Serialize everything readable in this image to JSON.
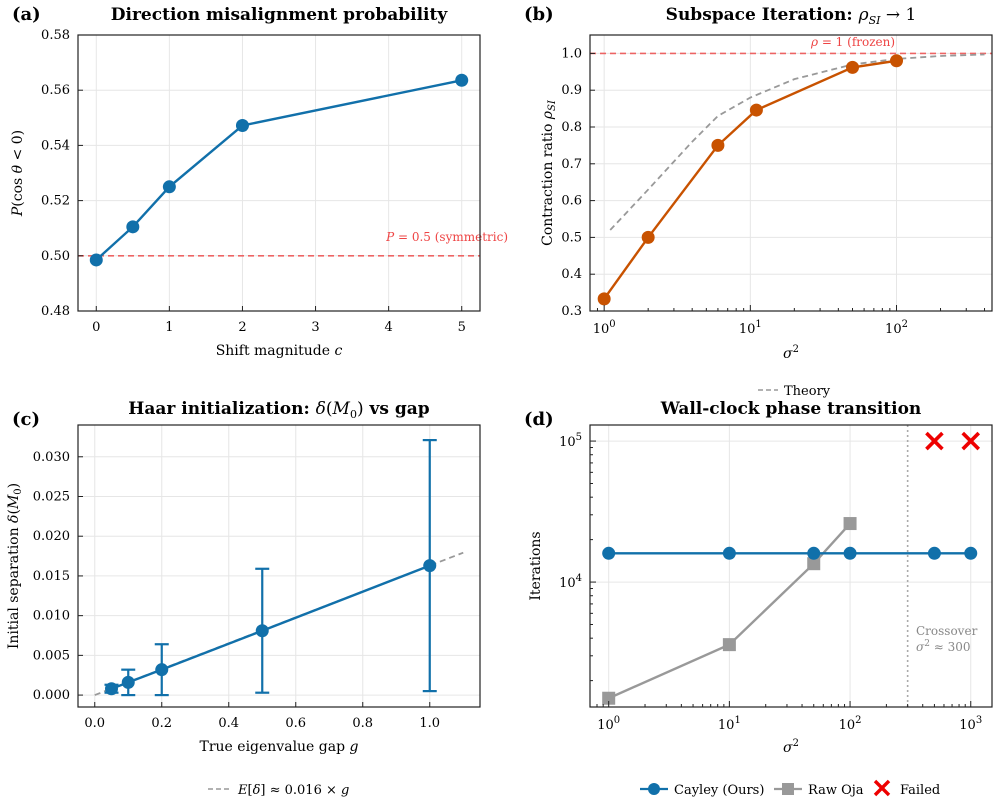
{
  "colors": {
    "blue": "#1170aa",
    "orange": "#c85200",
    "gray": "#999999",
    "red": "#ee4444",
    "theory": "#999999",
    "fail": "#ee0000"
  },
  "chart_data": [
    {
      "id": "a",
      "type": "line",
      "panel_label": "(a)",
      "title": "Direction misalignment probability",
      "xlabel": "Shift magnitude c",
      "ylabel": "P(cos θ < 0)",
      "xlim": [
        -0.25,
        5.25
      ],
      "ylim": [
        0.48,
        0.58
      ],
      "xticks": [
        0,
        1,
        2,
        3,
        4,
        5
      ],
      "xtick_labels": [
        "0",
        "1",
        "2",
        "3",
        "4",
        "5"
      ],
      "yticks": [
        0.48,
        0.5,
        0.52,
        0.54,
        0.56,
        0.58
      ],
      "ytick_labels": [
        "0.48",
        "0.50",
        "0.52",
        "0.54",
        "0.56",
        "0.58"
      ],
      "series": [
        {
          "name": "P(cos θ < 0)",
          "x": [
            0,
            0.5,
            1,
            2,
            5
          ],
          "y": [
            0.4985,
            0.5105,
            0.525,
            0.5472,
            0.5636
          ]
        }
      ],
      "reference_line": {
        "y": 0.5,
        "label": "P = 0.5 (symmetric)"
      }
    },
    {
      "id": "b",
      "type": "line",
      "panel_label": "(b)",
      "title": "Subspace Iteration: ρSI → 1",
      "xlabel": "σ²",
      "ylabel": "Contraction ratio ρSI",
      "xscale": "log",
      "xlim": [
        0.8,
        450
      ],
      "ylim": [
        0.3,
        1.05
      ],
      "xtick_exponents": [
        "0",
        "1",
        "2"
      ],
      "yticks": [
        0.3,
        0.4,
        0.5,
        0.6,
        0.7,
        0.8,
        0.9,
        1.0
      ],
      "ytick_labels": [
        "0.3",
        "0.4",
        "0.5",
        "0.6",
        "0.7",
        "0.8",
        "0.9",
        "1.0"
      ],
      "series": [
        {
          "name": "ρSI",
          "x": [
            1,
            2,
            6,
            11,
            50,
            100
          ],
          "y": [
            0.333,
            0.5,
            0.75,
            0.846,
            0.962,
            0.98
          ]
        },
        {
          "name": "Theory",
          "x": [
            1.1,
            2,
            4,
            6,
            10,
            20,
            50,
            100,
            200,
            400
          ],
          "y": [
            0.52,
            0.63,
            0.76,
            0.83,
            0.88,
            0.93,
            0.97,
            0.985,
            0.993,
            0.997
          ]
        }
      ],
      "reference_line": {
        "y": 1.0,
        "label": "ρ = 1 (frozen)"
      },
      "legend": [
        "Theory"
      ]
    },
    {
      "id": "c",
      "type": "line",
      "panel_label": "(c)",
      "title": "Haar initialization: δ(M0) vs gap",
      "xlabel": "True eigenvalue gap g",
      "ylabel": "Initial separation δ(M0)",
      "xlim": [
        -0.05,
        1.15
      ],
      "ylim": [
        -0.0015,
        0.034
      ],
      "xticks": [
        0,
        0.2,
        0.4,
        0.6,
        0.8,
        1.0
      ],
      "xtick_labels": [
        "0.0",
        "0.2",
        "0.4",
        "0.6",
        "0.8",
        "1.0"
      ],
      "yticks": [
        0,
        0.005,
        0.01,
        0.015,
        0.02,
        0.025,
        0.03
      ],
      "ytick_labels": [
        "0.000",
        "0.005",
        "0.010",
        "0.015",
        "0.020",
        "0.025",
        "0.030"
      ],
      "series": [
        {
          "name": "δ(M0)",
          "x": [
            0.05,
            0.1,
            0.2,
            0.5,
            1.0
          ],
          "y": [
            0.0008,
            0.0016,
            0.0032,
            0.0081,
            0.0163
          ],
          "err": [
            0.0005,
            0.0016,
            0.0032,
            0.0078,
            0.0158
          ]
        }
      ],
      "fit_line": {
        "label": "E[δ] ≈ 0.016 × g",
        "slope": 0.0163,
        "x": [
          0,
          1.1
        ]
      },
      "legend": [
        "E[δ] ≈ 0.016 × g"
      ]
    },
    {
      "id": "d",
      "type": "line",
      "panel_label": "(d)",
      "title": "Wall-clock phase transition",
      "xlabel": "σ²",
      "ylabel": "Iterations",
      "xscale": "log",
      "yscale": "log",
      "xlim": [
        0.7,
        1500
      ],
      "ylim": [
        1300,
        130000
      ],
      "xtick_exponents": [
        "0",
        "1",
        "2",
        "3"
      ],
      "ytick_exponents": [
        "4",
        "5"
      ],
      "series": [
        {
          "name": "Cayley (Ours)",
          "x": [
            1,
            10,
            50,
            100,
            500,
            1000
          ],
          "y": [
            16000,
            16000,
            16000,
            16000,
            16000,
            16000
          ]
        },
        {
          "name": "Raw Oja",
          "x": [
            1,
            10,
            50,
            100
          ],
          "y": [
            1500,
            3600,
            13500,
            26000
          ]
        },
        {
          "name": "Failed",
          "x": [
            500,
            1000
          ],
          "y": [
            100000,
            100000
          ]
        }
      ],
      "vline": {
        "x": 300,
        "label_line1": "Crossover",
        "label_line2": "σ² ≈ 300"
      },
      "legend": [
        "Cayley (Ours)",
        "Raw Oja",
        "Failed"
      ]
    }
  ]
}
